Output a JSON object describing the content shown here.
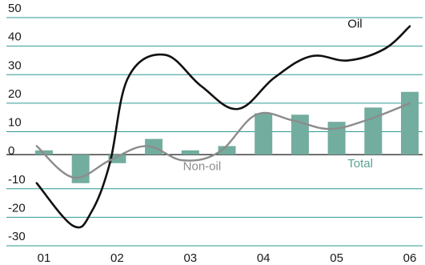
{
  "chart_data": {
    "type": "bar",
    "ylim": [
      -30,
      50
    ],
    "yticks": [
      50,
      40,
      30,
      20,
      10,
      0,
      -10,
      -20,
      -30
    ],
    "ytick_labels": [
      "50",
      "40",
      "30",
      "20",
      "10",
      "0",
      "-10",
      "-20",
      "-30"
    ],
    "xlim": [
      0,
      10
    ],
    "xticks": [
      0.2,
      2.2,
      4.2,
      6.2,
      8.2,
      10.2
    ],
    "xtick_labels": [
      "01",
      "02",
      "03",
      "04",
      "05",
      "06"
    ],
    "grid": true,
    "bar_series": {
      "name": "Total",
      "x": [
        0.2,
        1.2,
        2.2,
        3.2,
        4.2,
        5.2,
        6.2,
        7.2,
        8.2,
        9.2,
        10.2
      ],
      "values": [
        1.5,
        -10,
        -3,
        5.5,
        1.5,
        3,
        14.5,
        14,
        11.5,
        16.5,
        22
      ]
    },
    "series": [
      {
        "name": "Oil",
        "type": "line",
        "color": "#111111",
        "x": [
          0,
          1,
          1.5,
          2,
          2.5,
          3.5,
          4.5,
          5.5,
          6.5,
          7.5,
          8.5,
          9.5,
          10.2
        ],
        "values": [
          -10,
          -25,
          -20,
          -3,
          27,
          35,
          24,
          16,
          27,
          34.5,
          33,
          37,
          45
        ]
      },
      {
        "name": "Non-oil",
        "type": "line",
        "color": "#8c8c8c",
        "x": [
          0,
          1,
          2,
          3,
          4,
          5,
          6,
          7,
          8,
          9,
          10.2
        ],
        "values": [
          3,
          -8,
          -2,
          3,
          -2,
          1,
          14,
          12,
          9,
          12,
          18
        ]
      }
    ],
    "annotations": [
      {
        "text": "Oil",
        "x": 8.5,
        "y": 44.5,
        "color": "#111111"
      },
      {
        "text": "Non-oil",
        "x": 4.0,
        "y": -5.5,
        "color": "#8c8c8c"
      },
      {
        "text": "Total",
        "x": 8.5,
        "y": -4.5,
        "color": "#5aa394"
      }
    ]
  }
}
